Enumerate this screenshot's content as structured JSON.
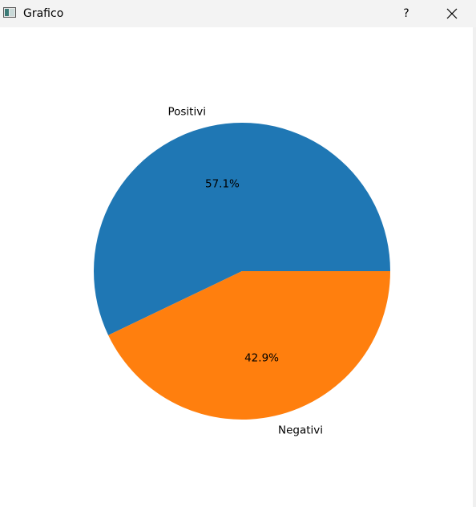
{
  "window": {
    "title": "Grafico",
    "help_label": "?",
    "close_icon": "close-icon",
    "app_icon": "chart-app-icon"
  },
  "chart_data": {
    "type": "pie",
    "categories": [
      "Positivi",
      "Negativi"
    ],
    "values": [
      57.1,
      42.9
    ],
    "labels": [
      "57.1%",
      "42.9%"
    ],
    "colors": [
      "#1f77b4",
      "#ff7f0e"
    ],
    "start_angle": 0,
    "direction": "counterclockwise"
  }
}
